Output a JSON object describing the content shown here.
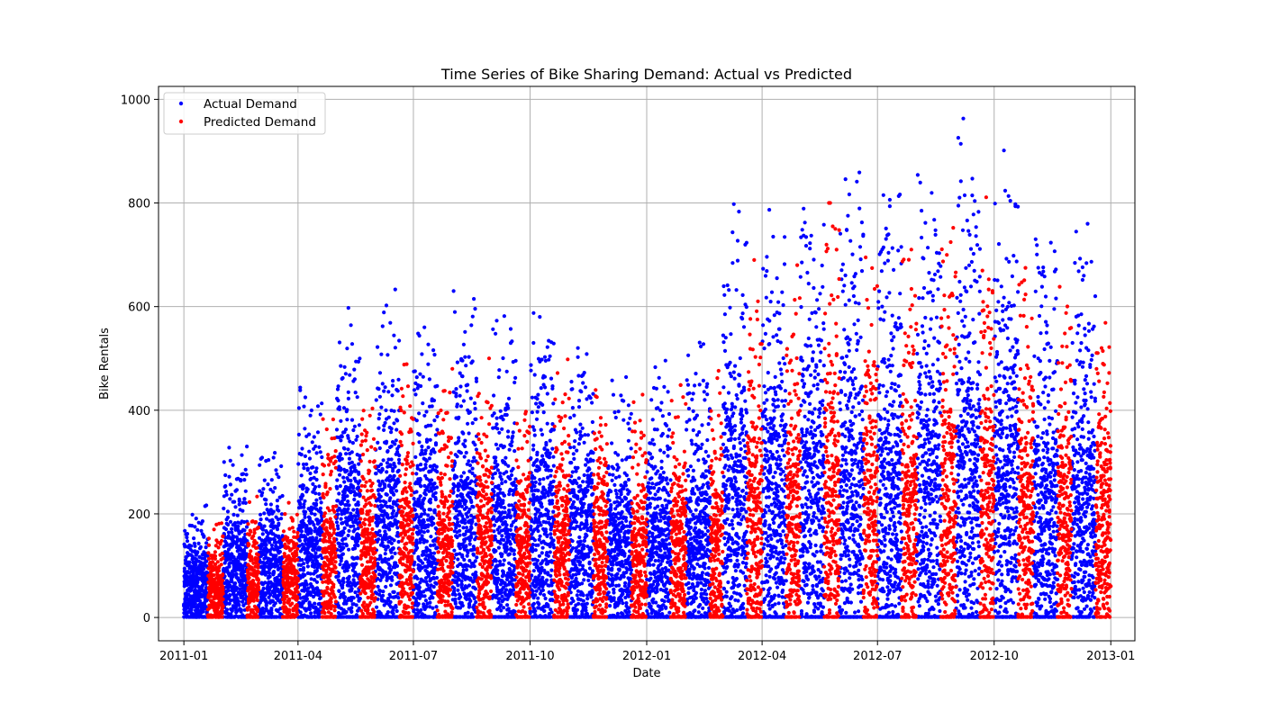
{
  "chart_data": {
    "type": "scatter",
    "title": "Time Series of Bike Sharing Demand: Actual vs Predicted",
    "xlabel": "Date",
    "ylabel": "Bike Rentals",
    "xlim": [
      "2010-12-12",
      "2013-01-20"
    ],
    "ylim": [
      -45,
      1025
    ],
    "x_ticks": [
      {
        "date": "2011-01-01",
        "label": "2011-01"
      },
      {
        "date": "2011-04-01",
        "label": "2011-04"
      },
      {
        "date": "2011-07-01",
        "label": "2011-07"
      },
      {
        "date": "2011-10-01",
        "label": "2011-10"
      },
      {
        "date": "2012-01-01",
        "label": "2012-01"
      },
      {
        "date": "2012-04-01",
        "label": "2012-04"
      },
      {
        "date": "2012-07-01",
        "label": "2012-07"
      },
      {
        "date": "2012-10-01",
        "label": "2012-10"
      },
      {
        "date": "2013-01-01",
        "label": "2013-01"
      }
    ],
    "y_ticks": [
      0,
      200,
      400,
      600,
      800,
      1000
    ],
    "grid": true,
    "legend_position": "top-left",
    "series": [
      {
        "name": "Actual Demand",
        "color": "#0000ff",
        "note_days": "days 1-19 of each month",
        "monthly_max": [
          {
            "month": "2011-01",
            "max": 220
          },
          {
            "month": "2011-02",
            "max": 330
          },
          {
            "month": "2011-03",
            "max": 335
          },
          {
            "month": "2011-04",
            "max": 455
          },
          {
            "month": "2011-05",
            "max": 610
          },
          {
            "month": "2011-06",
            "max": 635
          },
          {
            "month": "2011-07",
            "max": 600
          },
          {
            "month": "2011-08",
            "max": 630
          },
          {
            "month": "2011-09",
            "max": 600
          },
          {
            "month": "2011-10",
            "max": 625
          },
          {
            "month": "2011-11",
            "max": 550
          },
          {
            "month": "2011-12",
            "max": 470
          },
          {
            "month": "2012-01",
            "max": 510
          },
          {
            "month": "2012-02",
            "max": 540
          },
          {
            "month": "2012-03",
            "max": 800
          },
          {
            "month": "2012-04",
            "max": 820
          },
          {
            "month": "2012-05",
            "max": 870
          },
          {
            "month": "2012-06",
            "max": 870
          },
          {
            "month": "2012-07",
            "max": 875
          },
          {
            "month": "2012-08",
            "max": 895
          },
          {
            "month": "2012-09",
            "max": 975
          },
          {
            "month": "2012-10",
            "max": 945
          },
          {
            "month": "2012-11",
            "max": 730
          },
          {
            "month": "2012-12",
            "max": 760
          }
        ]
      },
      {
        "name": "Predicted Demand",
        "color": "#ff0000",
        "note_days": "days 20-end of each month",
        "monthly_max": [
          {
            "month": "2011-01",
            "max": 190
          },
          {
            "month": "2011-02",
            "max": 250
          },
          {
            "month": "2011-03",
            "max": 240
          },
          {
            "month": "2011-04",
            "max": 395
          },
          {
            "month": "2011-05",
            "max": 460
          },
          {
            "month": "2011-06",
            "max": 510
          },
          {
            "month": "2011-07",
            "max": 480
          },
          {
            "month": "2011-08",
            "max": 500
          },
          {
            "month": "2011-09",
            "max": 460
          },
          {
            "month": "2011-10",
            "max": 500
          },
          {
            "month": "2011-11",
            "max": 475
          },
          {
            "month": "2011-12",
            "max": 430
          },
          {
            "month": "2012-01",
            "max": 470
          },
          {
            "month": "2012-02",
            "max": 500
          },
          {
            "month": "2012-03",
            "max": 690
          },
          {
            "month": "2012-04",
            "max": 680
          },
          {
            "month": "2012-05",
            "max": 800
          },
          {
            "month": "2012-06",
            "max": 760
          },
          {
            "month": "2012-07",
            "max": 760
          },
          {
            "month": "2012-08",
            "max": 795
          },
          {
            "month": "2012-09",
            "max": 815
          },
          {
            "month": "2012-10",
            "max": 730
          },
          {
            "month": "2012-11",
            "max": 640
          },
          {
            "month": "2012-12",
            "max": 635
          }
        ]
      }
    ]
  }
}
